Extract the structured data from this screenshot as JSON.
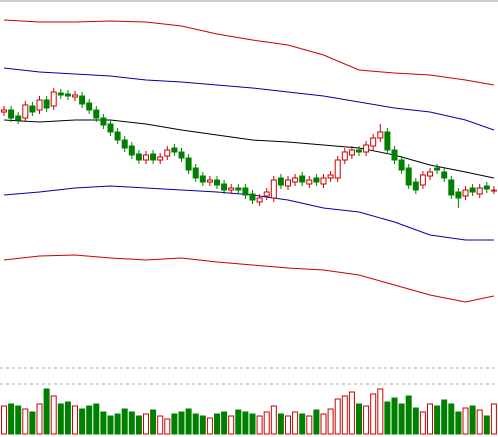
{
  "chart_data": {
    "type": "candlestick",
    "open": [
      248,
      250,
      244,
      242,
      254,
      250,
      260,
      254,
      267,
      266,
      263,
      264,
      257,
      250,
      242,
      236,
      228,
      220,
      214,
      206,
      200,
      206,
      200,
      204,
      212,
      208,
      202,
      192,
      184,
      178,
      180,
      176,
      170,
      172,
      172,
      166,
      158,
      164,
      162,
      182,
      174,
      178,
      184,
      176,
      182,
      176,
      182,
      182,
      200,
      205,
      210,
      208,
      214,
      222,
      228,
      210,
      200,
      192,
      178,
      175,
      184,
      192,
      188,
      180,
      168,
      164,
      172,
      166,
      174,
      170
    ],
    "high": [
      254,
      254,
      248,
      259,
      258,
      264,
      264,
      272,
      271,
      270,
      269,
      268,
      261,
      254,
      246,
      240,
      232,
      224,
      218,
      210,
      209,
      210,
      207,
      214,
      216,
      212,
      206,
      196,
      188,
      184,
      184,
      180,
      176,
      176,
      176,
      170,
      166,
      172,
      184,
      186,
      184,
      186,
      188,
      184,
      186,
      186,
      189,
      204,
      212,
      214,
      214,
      219,
      226,
      236,
      232,
      214,
      204,
      196,
      182,
      189,
      192,
      196,
      192,
      184,
      172,
      174,
      176,
      176,
      178,
      174
    ],
    "low": [
      244,
      238,
      236,
      238,
      244,
      246,
      248,
      250,
      261,
      260,
      259,
      252,
      246,
      238,
      231,
      224,
      216,
      208,
      201,
      196,
      196,
      196,
      196,
      200,
      204,
      198,
      186,
      178,
      174,
      174,
      171,
      166,
      166,
      166,
      161,
      156,
      154,
      160,
      158,
      171,
      170,
      174,
      174,
      172,
      174,
      172,
      178,
      178,
      196,
      201,
      204,
      204,
      210,
      218,
      206,
      196,
      186,
      171,
      166,
      171,
      180,
      186,
      178,
      161,
      152,
      160,
      164,
      162,
      167,
      166
    ],
    "close": [
      250,
      242,
      240,
      255,
      248,
      260,
      252,
      268,
      265,
      264,
      265,
      256,
      250,
      242,
      235,
      228,
      220,
      212,
      205,
      200,
      205,
      200,
      203,
      210,
      208,
      202,
      190,
      182,
      178,
      180,
      175,
      170,
      172,
      170,
      165,
      160,
      162,
      168,
      180,
      175,
      180,
      182,
      178,
      180,
      178,
      182,
      185,
      200,
      208,
      210,
      208,
      215,
      222,
      228,
      210,
      200,
      190,
      175,
      170,
      185,
      188,
      190,
      182,
      165,
      162,
      170,
      168,
      172,
      171,
      170
    ],
    "volume": [
      28,
      30,
      28,
      25,
      22,
      30,
      45,
      38,
      30,
      32,
      28,
      25,
      28,
      30,
      22,
      18,
      20,
      25,
      22,
      18,
      20,
      24,
      18,
      15,
      20,
      22,
      25,
      20,
      18,
      16,
      20,
      22,
      18,
      24,
      22,
      20,
      18,
      22,
      28,
      20,
      18,
      22,
      20,
      18,
      24,
      20,
      25,
      35,
      38,
      42,
      30,
      28,
      40,
      45,
      32,
      36,
      30,
      38,
      26,
      22,
      30,
      28,
      34,
      30,
      22,
      26,
      28,
      24,
      18,
      30
    ],
    "up_color": "#cc0000",
    "down_color": "#008000",
    "ylim": [
      0,
      360
    ],
    "vlim": [
      0,
      68
    ],
    "vticks": [
      50,
      66
    ],
    "band_x": [
      0,
      5,
      10,
      15,
      20,
      25,
      30,
      35,
      40,
      45,
      50,
      55,
      60,
      65,
      69
    ],
    "bands": [
      {
        "color": "#cc0000",
        "values": [
          340,
          338,
          338,
          339,
          338,
          334,
          326,
          320,
          315,
          305,
          290,
          287,
          285,
          280,
          275
        ]
      },
      {
        "color": "#0000aa",
        "values": [
          292,
          288,
          286,
          284,
          280,
          278,
          275,
          272,
          268,
          264,
          258,
          252,
          248,
          240,
          230
        ]
      },
      {
        "color": "#000000",
        "values": [
          240,
          238,
          240,
          240,
          236,
          230,
          225,
          220,
          218,
          215,
          212,
          205,
          195,
          188,
          182
        ]
      },
      {
        "color": "#0000aa",
        "values": [
          165,
          168,
          172,
          174,
          172,
          170,
          168,
          165,
          160,
          152,
          148,
          138,
          125,
          120,
          120
        ]
      },
      {
        "color": "#cc0000",
        "values": [
          100,
          104,
          105,
          102,
          100,
          102,
          98,
          95,
          92,
          90,
          85,
          75,
          65,
          58,
          64
        ]
      }
    ]
  }
}
